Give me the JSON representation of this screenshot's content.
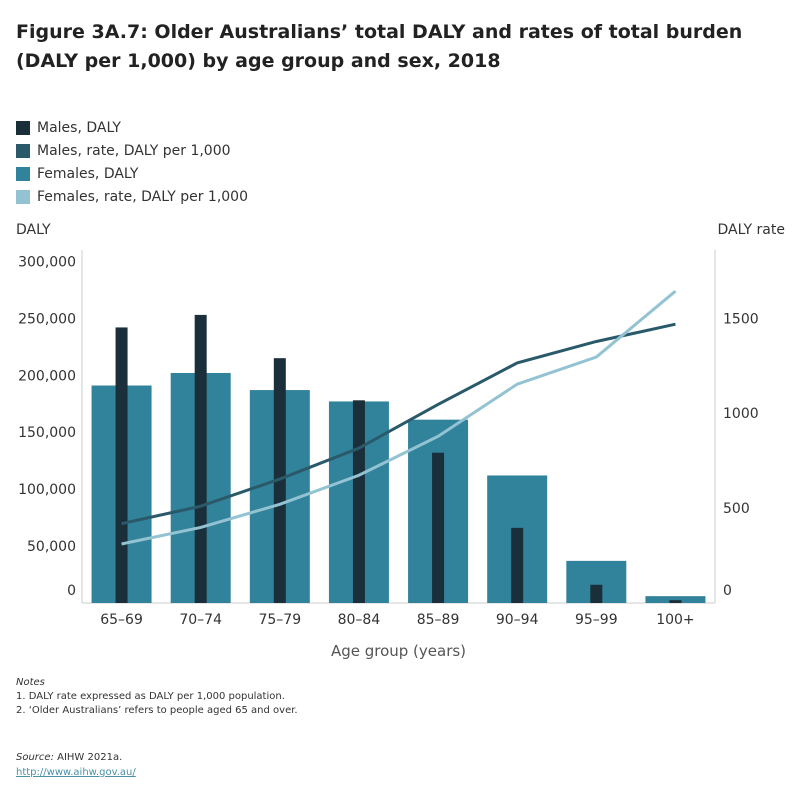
{
  "title": "Figure 3A.7: Older Australians’ total DALY and rates of total burden (DALY per 1,000) by age group and sex, 2018",
  "legend": [
    {
      "label": "Males, DALY",
      "color": "#1b2f3a"
    },
    {
      "label": "Males,  rate, DALY per 1,000",
      "color": "#2a5a6a"
    },
    {
      "label": "Females, DALY",
      "color": "#31829b"
    },
    {
      "label": "Females,  rate, DALY per 1,000",
      "color": "#93c3d2"
    }
  ],
  "notes": {
    "heading": "Notes",
    "items": [
      "1. DALY rate expressed as DALY per 1,000 population.",
      "2. ‘Older Australians’ refers to people aged 65 and over."
    ]
  },
  "source": {
    "label": "Source:",
    "text": " AIHW 2021a.",
    "link": "http://www.aihw.gov.au/"
  },
  "chart_data": {
    "type": "bar",
    "xlabel": "Age group (years)",
    "ylabel": "DALY",
    "y2label": "DALY rate",
    "categories": [
      "65–69",
      "70–74",
      "75–79",
      "80–84",
      "85–89",
      "90–94",
      "95–99",
      "100+"
    ],
    "ylim": [
      0,
      310000
    ],
    "y2lim": [
      0,
      1860
    ],
    "yticks": [
      0,
      50000,
      100000,
      150000,
      200000,
      250000,
      300000
    ],
    "ytick_labels": [
      "0",
      "50,000",
      "100,000",
      "150,000",
      "200,000",
      "250,000",
      "300,000"
    ],
    "y2ticks": [
      0,
      500,
      1000,
      1500
    ],
    "y2tick_labels": [
      "0",
      "500",
      "1000",
      "1500"
    ],
    "series": [
      {
        "name": "Females, DALY",
        "kind": "bar",
        "axis": "left",
        "color": "#31829b",
        "values": [
          191000,
          202000,
          187000,
          177000,
          161000,
          112000,
          37000,
          6000
        ]
      },
      {
        "name": "Males, DALY",
        "kind": "bar",
        "axis": "left",
        "color": "#1b2f3a",
        "values": [
          242000,
          253000,
          215000,
          178000,
          132000,
          66000,
          16000,
          2500
        ]
      },
      {
        "name": "Males,  rate, DALY per 1,000",
        "kind": "line",
        "axis": "right",
        "color": "#2a5a6a",
        "values": [
          418,
          510,
          653,
          816,
          1046,
          1265,
          1378,
          1469
        ]
      },
      {
        "name": "Females,  rate, DALY per 1,000",
        "kind": "line",
        "axis": "right",
        "color": "#93c3d2",
        "values": [
          311,
          398,
          520,
          673,
          878,
          1153,
          1296,
          1643
        ]
      }
    ]
  }
}
